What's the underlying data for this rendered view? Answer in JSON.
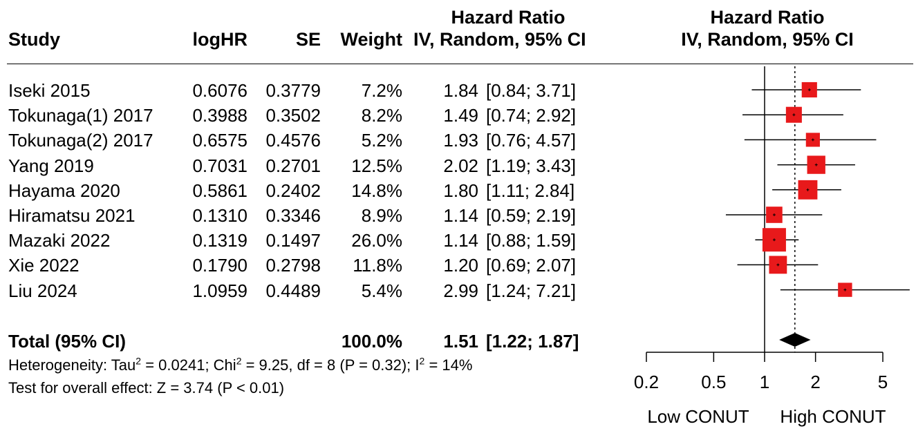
{
  "table": {
    "headers": {
      "study": "Study",
      "loghr": "logHR",
      "se": "SE",
      "weight": "Weight",
      "hr_line1": "Hazard Ratio",
      "hr_line2": "IV, Random, 95% CI",
      "plot_line1": "Hazard Ratio",
      "plot_line2": "IV, Random, 95% CI"
    },
    "rows": [
      {
        "study": "Iseki 2015",
        "loghr": "0.6076",
        "se": "0.3779",
        "weight": "7.2%",
        "hr": "1.84",
        "ci": "[0.84; 3.71]"
      },
      {
        "study": "Tokunaga(1) 2017",
        "loghr": "0.3988",
        "se": "0.3502",
        "weight": "8.2%",
        "hr": "1.49",
        "ci": "[0.74; 2.92]"
      },
      {
        "study": "Tokunaga(2) 2017",
        "loghr": "0.6575",
        "se": "0.4576",
        "weight": "5.2%",
        "hr": "1.93",
        "ci": "[0.76; 4.57]"
      },
      {
        "study": "Yang 2019",
        "loghr": "0.7031",
        "se": "0.2701",
        "weight": "12.5%",
        "hr": "2.02",
        "ci": "[1.19; 3.43]"
      },
      {
        "study": "Hayama 2020",
        "loghr": "0.5861",
        "se": "0.2402",
        "weight": "14.8%",
        "hr": "1.80",
        "ci": "[1.11; 2.84]"
      },
      {
        "study": "Hiramatsu 2021",
        "loghr": "0.1310",
        "se": "0.3346",
        "weight": "8.9%",
        "hr": "1.14",
        "ci": "[0.59; 2.19]"
      },
      {
        "study": "Mazaki 2022",
        "loghr": "0.1319",
        "se": "0.1497",
        "weight": "26.0%",
        "hr": "1.14",
        "ci": "[0.88; 1.59]"
      },
      {
        "study": "Xie 2022",
        "loghr": "0.1790",
        "se": "0.2798",
        "weight": "11.8%",
        "hr": "1.20",
        "ci": "[0.69; 2.07]"
      },
      {
        "study": "Liu 2024",
        "loghr": "1.0959",
        "se": "0.4489",
        "weight": "5.4%",
        "hr": "2.99",
        "ci": "[1.24; 7.21]"
      }
    ],
    "total": {
      "label": "Total (95% CI)",
      "weight": "100.0%",
      "hr": "1.51",
      "ci": "[1.22; 1.87]"
    },
    "heterogeneity": {
      "prefix": "Heterogeneity: Tau",
      "sup1": "2",
      "mid1": " = 0.0241; Chi",
      "sup2": "2",
      "mid2": " = 9.25, df = 8 (P = 0.32); I",
      "sup3": "2",
      "end": " = 14%"
    },
    "overall_test": "Test for overall effect: Z = 3.74 (P < 0.01)"
  },
  "chart_data": {
    "type": "forest",
    "x_scale": "log",
    "xlim": [
      0.2,
      5
    ],
    "xticks": [
      "0.2",
      "0.5",
      "1",
      "2",
      "5"
    ],
    "xtick_values": [
      0.2,
      0.5,
      1,
      2,
      5
    ],
    "null_line": 1,
    "pooled_line": 1.51,
    "left_label": "Low CONUT",
    "right_label": "High CONUT",
    "marker_color": "#e8191b",
    "studies": [
      {
        "name": "Iseki 2015",
        "hr": 1.84,
        "lower": 0.84,
        "upper": 3.71,
        "weight": 7.2
      },
      {
        "name": "Tokunaga(1) 2017",
        "hr": 1.49,
        "lower": 0.74,
        "upper": 2.92,
        "weight": 8.2
      },
      {
        "name": "Tokunaga(2) 2017",
        "hr": 1.93,
        "lower": 0.76,
        "upper": 4.57,
        "weight": 5.2
      },
      {
        "name": "Yang 2019",
        "hr": 2.02,
        "lower": 1.19,
        "upper": 3.43,
        "weight": 12.5
      },
      {
        "name": "Hayama 2020",
        "hr": 1.8,
        "lower": 1.11,
        "upper": 2.84,
        "weight": 14.8
      },
      {
        "name": "Hiramatsu 2021",
        "hr": 1.14,
        "lower": 0.59,
        "upper": 2.19,
        "weight": 8.9
      },
      {
        "name": "Mazaki 2022",
        "hr": 1.14,
        "lower": 0.88,
        "upper": 1.59,
        "weight": 26.0
      },
      {
        "name": "Xie 2022",
        "hr": 1.2,
        "lower": 0.69,
        "upper": 2.07,
        "weight": 11.8
      },
      {
        "name": "Liu 2024",
        "hr": 2.99,
        "lower": 1.24,
        "upper": 7.21,
        "weight": 5.4
      }
    ],
    "pooled": {
      "hr": 1.51,
      "lower": 1.22,
      "upper": 1.87
    }
  }
}
